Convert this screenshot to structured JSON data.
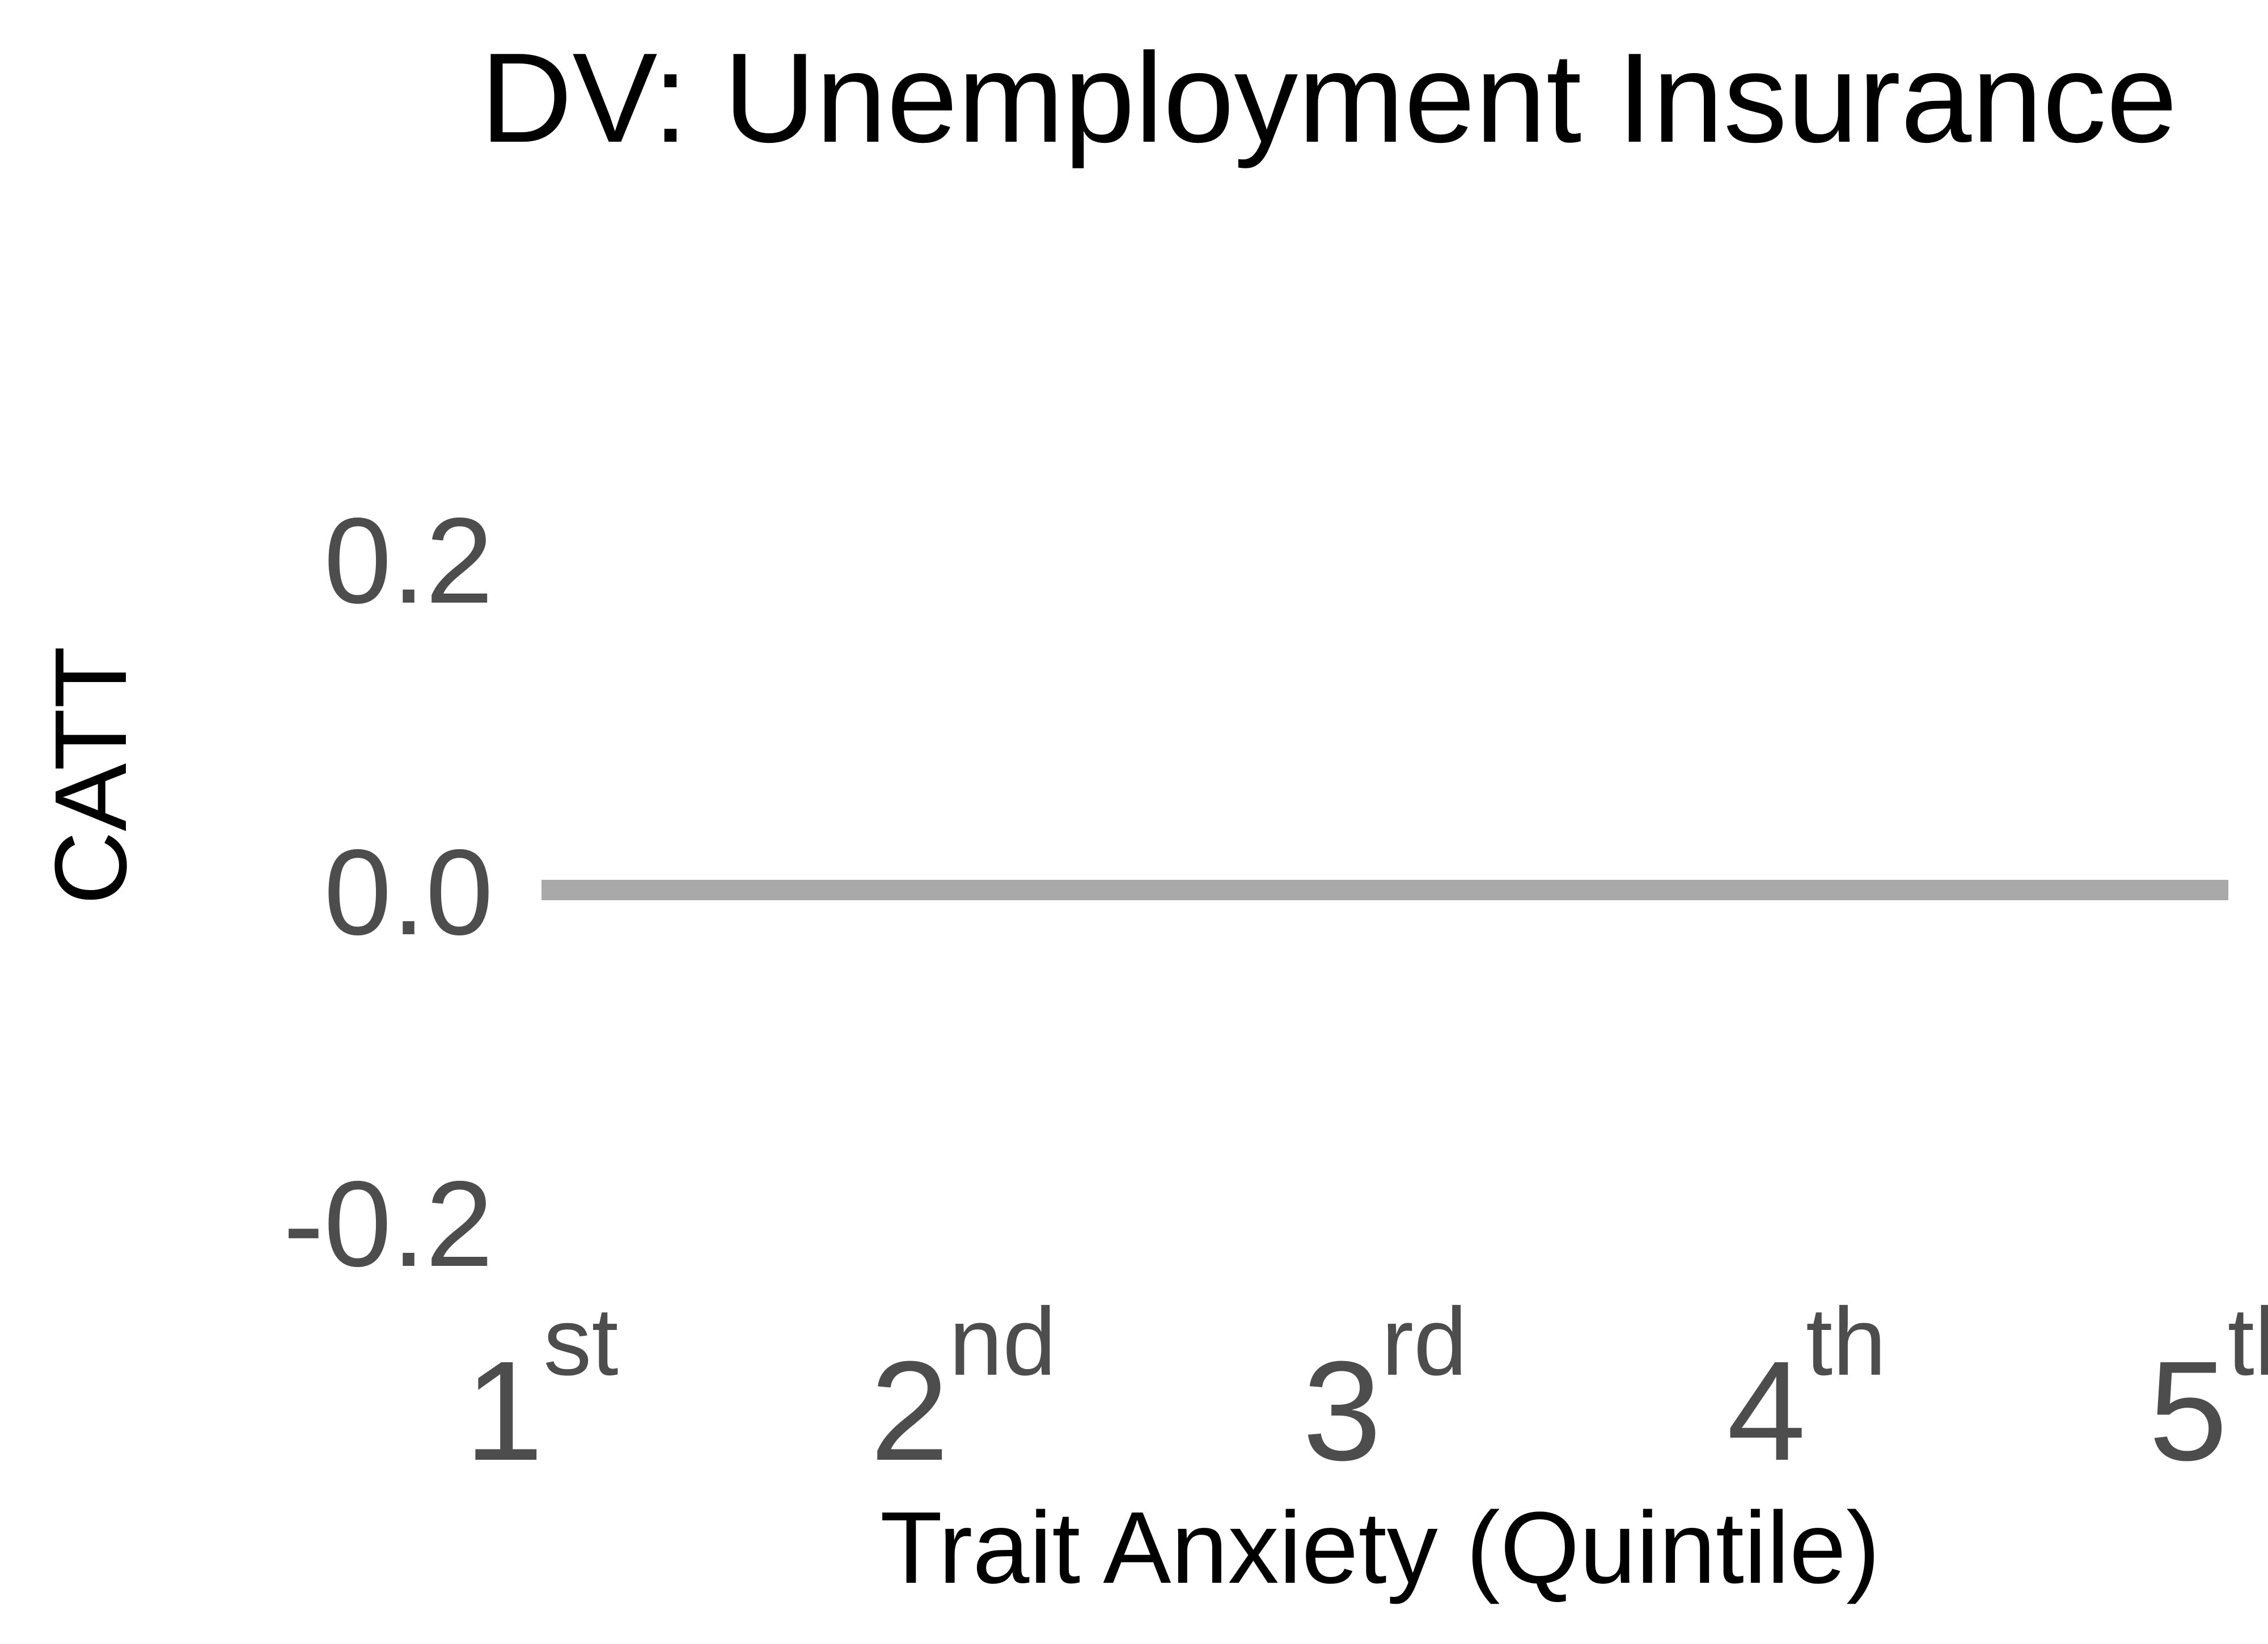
{
  "chart_data": {
    "type": "line",
    "title": "DV: Unemployment Insurance",
    "xlabel": "Trait Anxiety (Quintile)",
    "ylabel": "CATT",
    "categories": [
      {
        "base": "1",
        "sup": "st"
      },
      {
        "base": "2",
        "sup": "nd"
      },
      {
        "base": "3",
        "sup": "rd"
      },
      {
        "base": "4",
        "sup": "th"
      },
      {
        "base": "5",
        "sup": "th"
      }
    ],
    "y_ticks": [
      "0.2",
      "0.0",
      "-0.2"
    ],
    "y_tick_values": [
      0.2,
      0.0,
      -0.2
    ],
    "ylim": [
      -0.2,
      0.2
    ],
    "series": [
      {
        "color": "#a9a9a9",
        "values": [
          0,
          0,
          0,
          0,
          0
        ]
      }
    ],
    "grid": false,
    "legend": "none"
  }
}
